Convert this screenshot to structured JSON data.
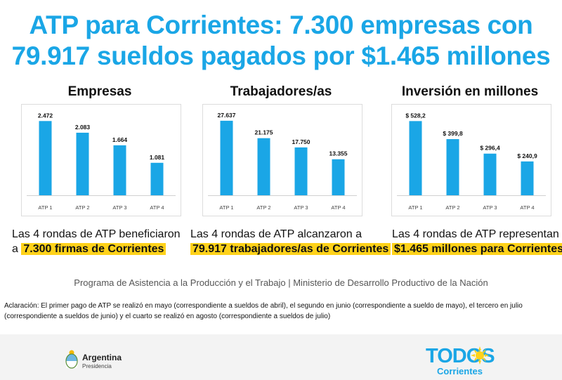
{
  "title": {
    "line1": "ATP para Corrientes: 7.300 empresas con",
    "line2": "79.917 sueldos pagados por $1.465 millones"
  },
  "colors": {
    "accent": "#1aa6e6",
    "highlight": "#ffd21a"
  },
  "chart_data": [
    {
      "type": "bar",
      "title": "Empresas",
      "categories": [
        "ATP 1",
        "ATP 2",
        "ATP 3",
        "ATP 4"
      ],
      "values": [
        2472,
        2083,
        1664,
        1081
      ],
      "value_labels": [
        "2.472",
        "2.083",
        "1.664",
        "1.081"
      ],
      "ylim": [
        0,
        2900
      ],
      "grid": false
    },
    {
      "type": "bar",
      "title": "Trabajadores/as",
      "categories": [
        "ATP 1",
        "ATP 2",
        "ATP 3",
        "ATP 4"
      ],
      "values": [
        27637,
        21175,
        17750,
        13355
      ],
      "value_labels": [
        "27.637",
        "21.175",
        "17.750",
        "13.355"
      ],
      "ylim": [
        0,
        32300
      ],
      "grid": false
    },
    {
      "type": "bar",
      "title": "Inversión en millones",
      "categories": [
        "ATP 1",
        "ATP 2",
        "ATP 3",
        "ATP 4"
      ],
      "values": [
        528.2,
        399.8,
        296.4,
        240.9
      ],
      "value_labels": [
        "$ 528,2",
        "$ 399,8",
        "$ 296,4",
        "$ 240,9"
      ],
      "ylim": [
        0,
        620
      ],
      "grid": false
    }
  ],
  "summaries": [
    {
      "text": "Las 4 rondas de ATP beneficiaron",
      "prefix": "a ",
      "highlight": "7.300 firmas de Corrientes"
    },
    {
      "text": "Las 4 rondas de ATP alcanzaron a",
      "prefix": "",
      "highlight": "79.917 trabajadores/as de Corrientes"
    },
    {
      "text": "Las 4 rondas de ATP representan",
      "prefix": "",
      "highlight": "$1.465 millones para Corrientes"
    }
  ],
  "program": "Programa de Asistencia a la Producción y el Trabajo | Ministerio de Desarrollo Productivo de la Nación",
  "note": "Aclaración: El primer pago de ATP se realizó en mayo (correspondiente a sueldos de abril), el segundo en junio (correspondiente a sueldo de mayo), el tercero en julio (correspondiente a sueldos de junio) y el cuarto se realizó en agosto (correspondiente a sueldos de julio)",
  "footer": {
    "argentina_name": "Argentina",
    "argentina_sub": "Presidencia",
    "todos_word": "TODOS",
    "todos_sub": "Corrientes"
  }
}
